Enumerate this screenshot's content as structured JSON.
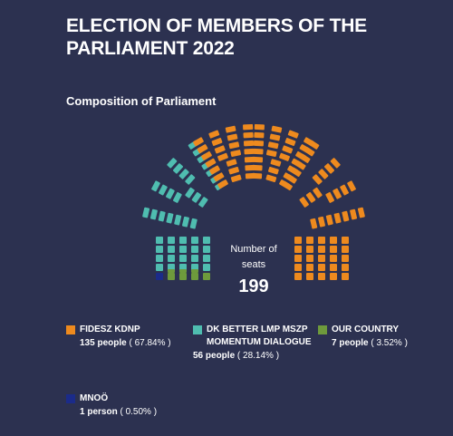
{
  "header": {
    "title": "ELECTION OF MEMBERS OF THE PARLIAMENT 2022",
    "subtitle": "Composition of Parliament"
  },
  "center_label": {
    "text": "Number of seats",
    "total": "199"
  },
  "chart_data": {
    "type": "parliament",
    "title": "Composition of Parliament",
    "total_seats": 199,
    "series": [
      {
        "name": "FIDESZ KDNP",
        "seats": 135,
        "percent": 67.84,
        "color": "#ee8a1e"
      },
      {
        "name": "DK BETTER LMP MSZP MOMENTUM DIALOGUE",
        "seats": 56,
        "percent": 28.14,
        "color": "#4fbdb0"
      },
      {
        "name": "OUR COUNTRY",
        "seats": 7,
        "percent": 3.52,
        "color": "#6e9a3c"
      },
      {
        "name": "MNOÖ",
        "seats": 1,
        "percent": 0.5,
        "color": "#1b2b8a"
      }
    ]
  },
  "legend": [
    {
      "name": "FIDESZ KDNP",
      "count": "135 people",
      "pct": "( 67.84% )",
      "color": "#ee8a1e"
    },
    {
      "name": "DK BETTER LMP MSZP MOMENTUM DIALOGUE",
      "count": "56 people",
      "pct": "( 28.14% )",
      "color": "#4fbdb0"
    },
    {
      "name": "OUR COUNTRY",
      "count": "7 people",
      "pct": "( 3.52% )",
      "color": "#6e9a3c"
    },
    {
      "name": "MNOÖ",
      "count": "1 person",
      "pct": "( 0.50% )",
      "color": "#1b2b8a"
    }
  ]
}
